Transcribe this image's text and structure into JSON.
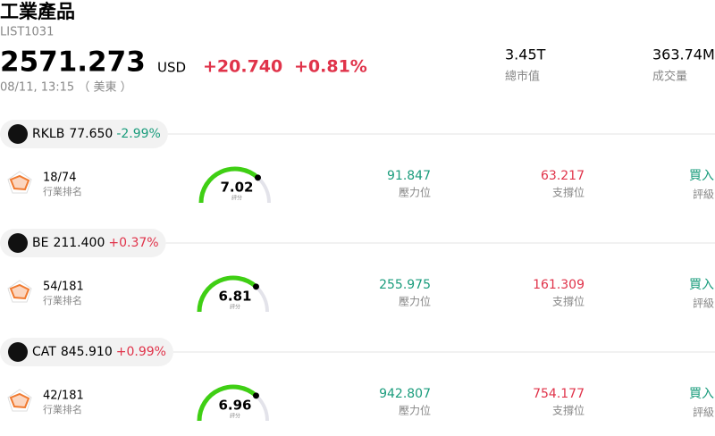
{
  "header": {
    "title": "工業產品",
    "code": "LIST1031",
    "price": "2571.273",
    "currency": "USD",
    "change": "+20.740",
    "change_pct": "+0.81%",
    "time": "08/11, 13:15 （ 美東 ）",
    "stats": [
      {
        "value": "3.45T",
        "label": "總市值"
      },
      {
        "value": "363.74M",
        "label": "成交量"
      }
    ]
  },
  "stocks": [
    {
      "symbol": "RKLB",
      "price": "77.650",
      "change_pct": "-2.99%",
      "rank": "18/74",
      "rank_label": "行業排名",
      "score": "7.02",
      "score_label": "評分",
      "resistance": "91.847",
      "resistance_label": "壓力位",
      "support": "63.217",
      "support_label": "支撐位",
      "rating": "買入",
      "rating_label": "評級"
    },
    {
      "symbol": "BE",
      "price": "211.400",
      "change_pct": "+0.37%",
      "rank": "54/181",
      "rank_label": "行業排名",
      "score": "6.81",
      "score_label": "評分",
      "resistance": "255.975",
      "resistance_label": "壓力位",
      "support": "161.309",
      "support_label": "支撐位",
      "rating": "買入",
      "rating_label": "評級"
    },
    {
      "symbol": "CAT",
      "price": "845.910",
      "change_pct": "+0.99%",
      "rank": "42/181",
      "rank_label": "行業排名",
      "score": "6.96",
      "score_label": "評分",
      "resistance": "942.807",
      "resistance_label": "壓力位",
      "support": "754.177",
      "support_label": "支撐位",
      "rating": "買入",
      "rating_label": "評級"
    }
  ]
}
